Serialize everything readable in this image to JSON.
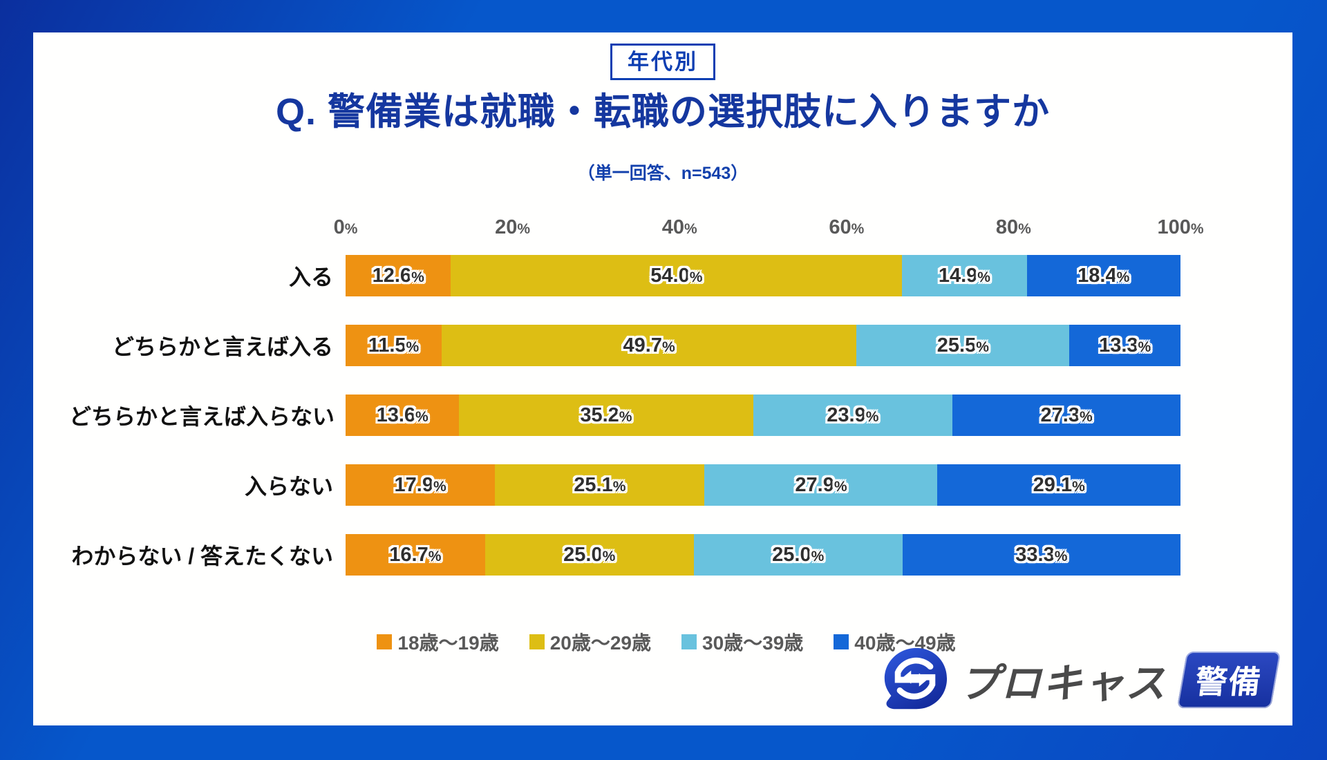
{
  "header": {
    "badge": "年代別",
    "title": "Q. 警備業は就職・転職の選択肢に入りますか",
    "subtitle": "（単一回答、n=543）"
  },
  "chart_data": {
    "type": "bar",
    "stacked": true,
    "orientation": "horizontal",
    "title": "Q. 警備業は就職・転職の選択肢に入りますか",
    "subtitle": "（単一回答、n=543）",
    "categories": [
      "入る",
      "どちらかと言えば入る",
      "どちらかと言えば入らない",
      "入らない",
      "わからない / 答えたくない"
    ],
    "series": [
      {
        "name": "18歳〜19歳",
        "color": "#ee9212",
        "values": [
          12.6,
          11.5,
          13.6,
          17.9,
          16.7
        ],
        "labels": [
          "12.6",
          "11.5",
          "13.6",
          "17.9",
          "16.7"
        ]
      },
      {
        "name": "20歳〜29歳",
        "color": "#ddbe14",
        "values": [
          54.0,
          49.7,
          35.2,
          25.1,
          25.0
        ],
        "labels": [
          "54.0",
          "49.7",
          "35.2",
          "25.1",
          "25.0"
        ]
      },
      {
        "name": "30歳〜39歳",
        "color": "#69c2de",
        "values": [
          14.9,
          25.5,
          23.9,
          27.9,
          25.0
        ],
        "labels": [
          "14.9",
          "25.5",
          "23.9",
          "27.9",
          "25.0"
        ]
      },
      {
        "name": "40歳〜49歳",
        "color": "#1468d8",
        "values": [
          18.4,
          13.3,
          27.3,
          29.1,
          33.3
        ],
        "labels": [
          "18.4",
          "13.3",
          "27.3",
          "29.1",
          "33.3"
        ]
      }
    ],
    "x_axis": {
      "ticks": [
        "0",
        "20",
        "40",
        "60",
        "80",
        "100"
      ],
      "suffix": "%",
      "min": 0,
      "max": 100,
      "grid": false
    },
    "value_suffix": "%",
    "legend_position": "bottom"
  },
  "logo": {
    "name": "プロキャス",
    "badge": "警備"
  },
  "colors": {
    "frame_blue": "#0657cb",
    "title_blue": "#15379f",
    "badge_blue": "#0d3eb2",
    "axis_gray": "#595959",
    "value_text": "#2f2f2f"
  }
}
